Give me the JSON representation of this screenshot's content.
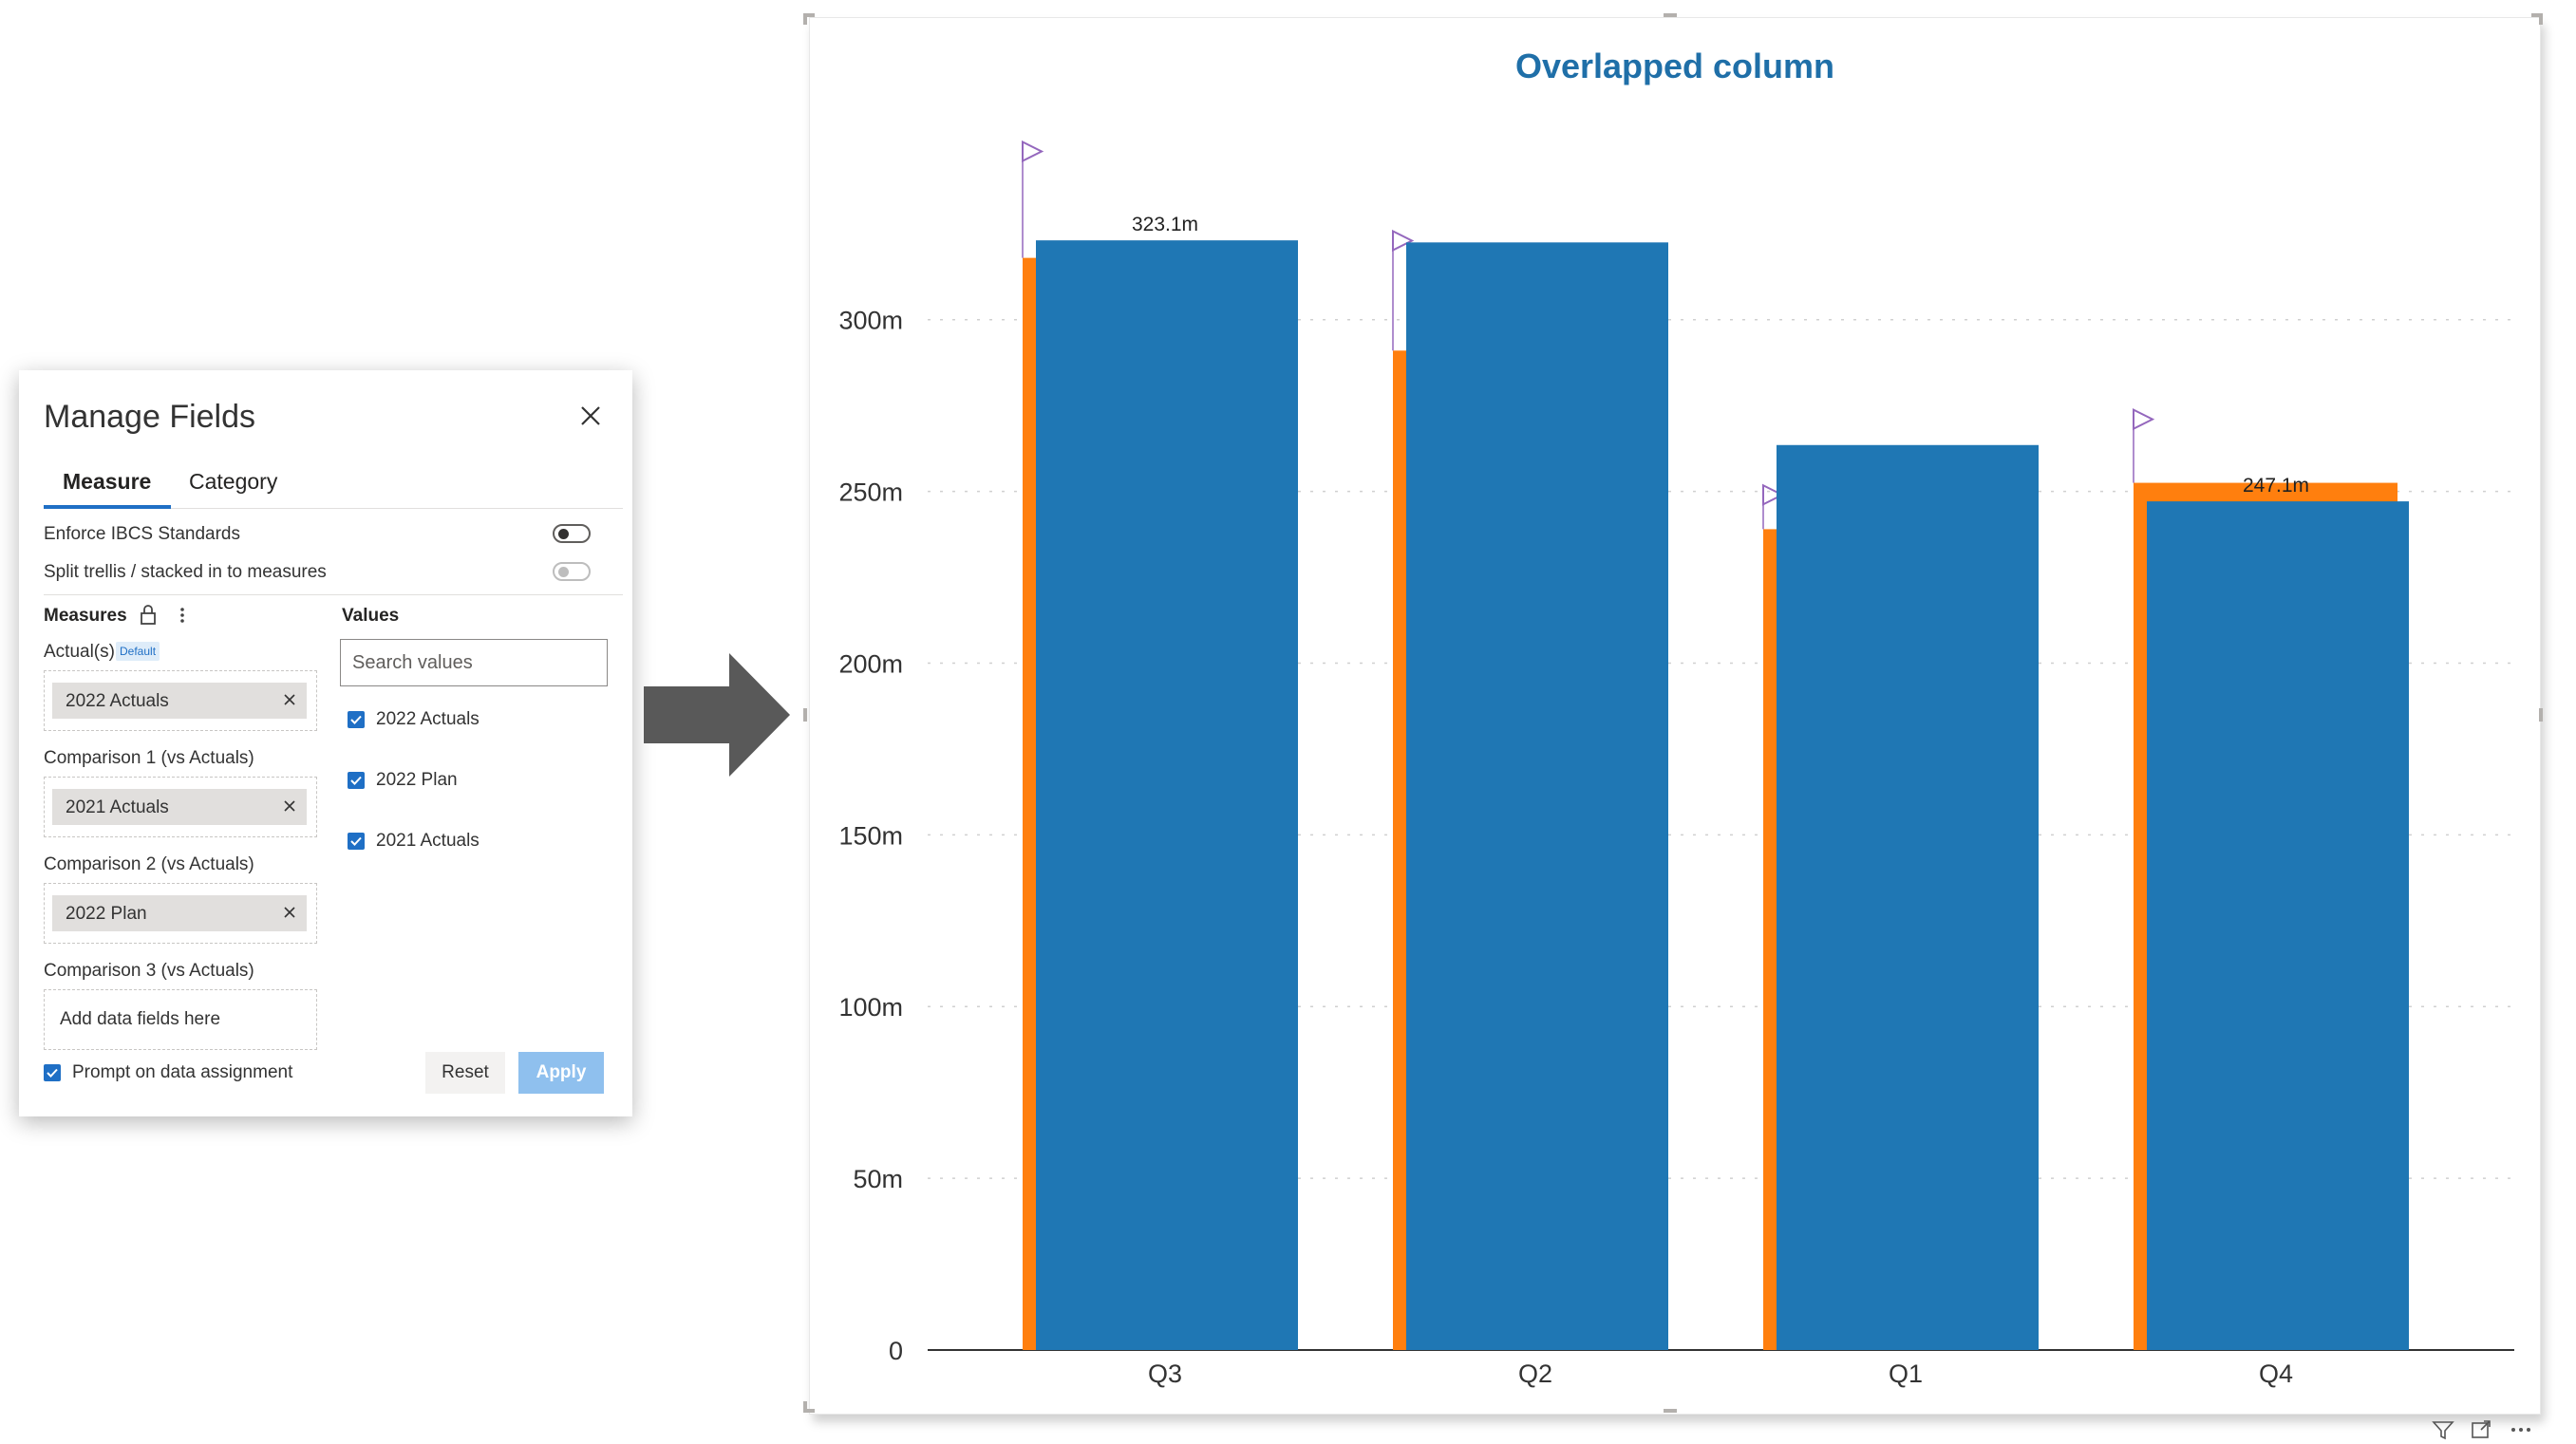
{
  "panel": {
    "title": "Manage Fields",
    "tabs": [
      {
        "label": "Measure",
        "active": true
      },
      {
        "label": "Category",
        "active": false
      }
    ],
    "settings": [
      {
        "label": "Enforce IBCS Standards",
        "enabled": true,
        "on": false
      },
      {
        "label": "Split trellis / stacked in to measures",
        "enabled": false,
        "on": false
      }
    ],
    "measures_heading": "Measures",
    "values_heading": "Values",
    "wells": [
      {
        "label": "Actual(s)",
        "badge": "Default",
        "field": "2022 Actuals"
      },
      {
        "label": "Comparison 1 (vs Actuals)",
        "field": "2021 Actuals"
      },
      {
        "label": "Comparison 2 (vs Actuals)",
        "field": "2022 Plan"
      },
      {
        "label": "Comparison 3 (vs Actuals)",
        "field": null,
        "placeholder": "Add data fields here"
      }
    ],
    "search": {
      "placeholder": "Search values"
    },
    "values": [
      {
        "label": "2022 Actuals",
        "checked": true
      },
      {
        "label": "2022 Plan",
        "checked": true
      },
      {
        "label": "2021 Actuals",
        "checked": true
      }
    ],
    "prompt_label": "Prompt on data assignment",
    "prompt_checked": true,
    "reset_label": "Reset",
    "apply_label": "Apply"
  },
  "colors": {
    "actuals": "#1f77b4",
    "comparison": "#ff7f0e",
    "flag": "#9467bd",
    "title": "#1f6fa8",
    "accent": "#1f6fc5"
  },
  "chart_data": {
    "type": "bar",
    "title": "Overlapped column",
    "categories": [
      "Q3",
      "Q2",
      "Q1",
      "Q4"
    ],
    "series": [
      {
        "values": [
          323.1,
          322.5,
          263.5,
          247.1
        ]
      },
      {
        "values": [
          318,
          291,
          239,
          252.5
        ]
      }
    ],
    "flags": [
      349,
      323,
      249,
      271
    ],
    "data_labels": [
      "323.1m",
      "",
      "",
      "247.1m"
    ],
    "yticks": [
      0,
      50,
      100,
      150,
      200,
      250,
      300
    ],
    "ytick_labels": [
      "0",
      "50m",
      "100m",
      "150m",
      "200m",
      "250m",
      "300m"
    ],
    "ylim": [
      0,
      353
    ],
    "grid": true
  }
}
